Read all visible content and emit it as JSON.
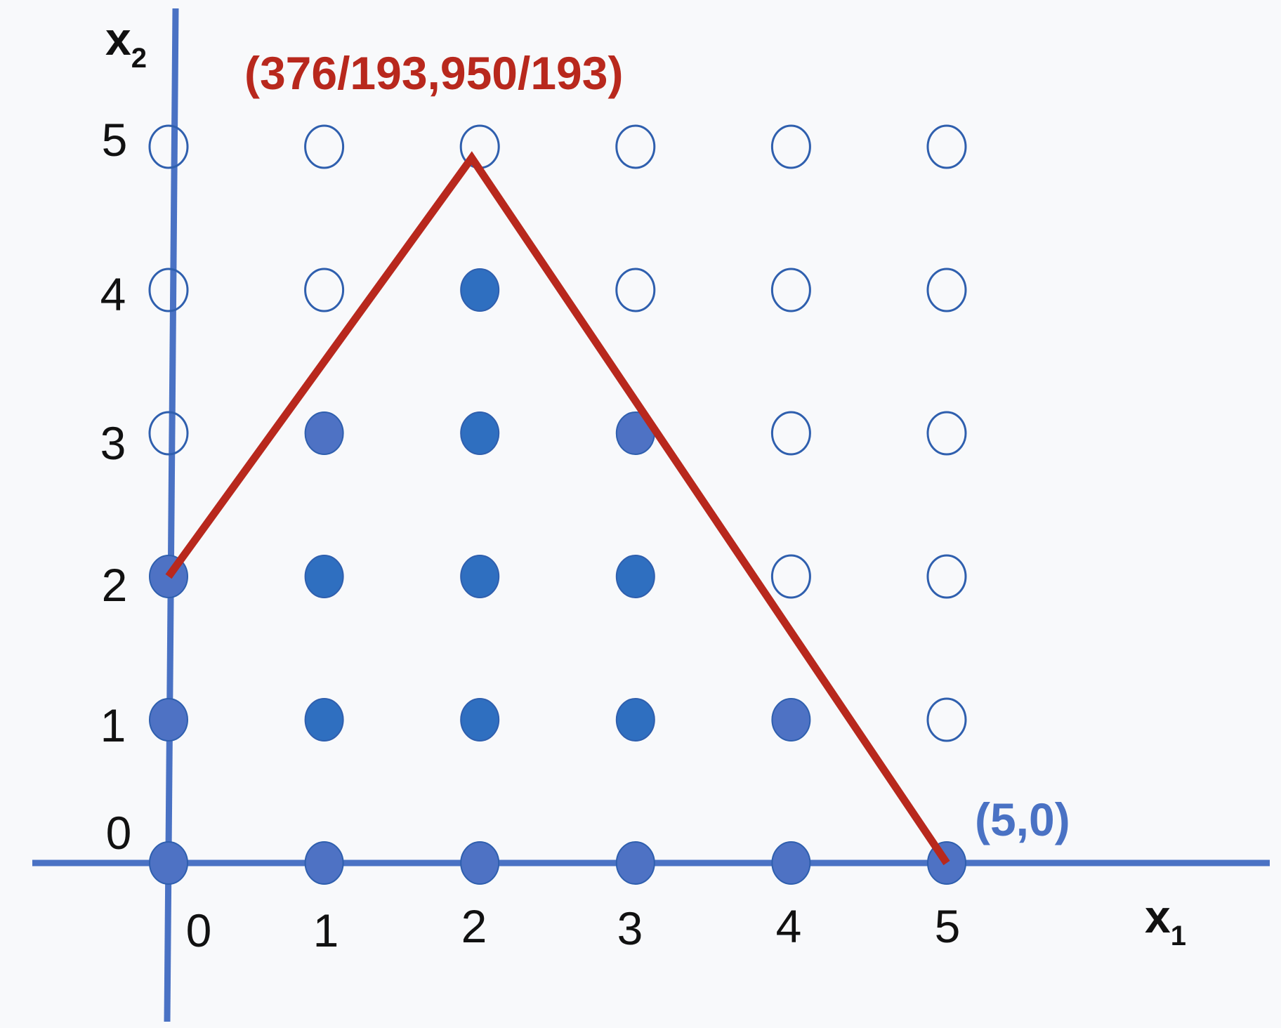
{
  "axes": {
    "x_label": "x",
    "x_subscript": "1",
    "y_label": "x",
    "y_subscript": "2",
    "x_ticks": [
      "0",
      "1",
      "2",
      "3",
      "4",
      "5"
    ],
    "y_ticks": [
      "0",
      "1",
      "2",
      "3",
      "4",
      "5"
    ]
  },
  "vertex_labels": {
    "apex": "(376/193,950/193)",
    "right": "(5,0)"
  },
  "colors": {
    "axis": "#4a72c4",
    "point_fill": "#2f6fc0",
    "point_fill_alt": "#4e72c4",
    "point_open_stroke": "#2f5fae",
    "constraint_line": "#b8281d",
    "apex_label": "#b8281d",
    "right_label": "#4a72c4",
    "tick_text": "#111111"
  },
  "diagram": {
    "constraint_polyline": [
      [
        0,
        2
      ],
      [
        1.948,
        4.922
      ],
      [
        5,
        0
      ]
    ],
    "points": [
      {
        "x": 0,
        "y": 0,
        "filled": true,
        "tone": "alt"
      },
      {
        "x": 1,
        "y": 0,
        "filled": true,
        "tone": "alt"
      },
      {
        "x": 2,
        "y": 0,
        "filled": true,
        "tone": "alt"
      },
      {
        "x": 3,
        "y": 0,
        "filled": true,
        "tone": "alt"
      },
      {
        "x": 4,
        "y": 0,
        "filled": true,
        "tone": "alt"
      },
      {
        "x": 5,
        "y": 0,
        "filled": true,
        "tone": "alt"
      },
      {
        "x": 0,
        "y": 1,
        "filled": true,
        "tone": "alt"
      },
      {
        "x": 1,
        "y": 1,
        "filled": true,
        "tone": "main"
      },
      {
        "x": 2,
        "y": 1,
        "filled": true,
        "tone": "main"
      },
      {
        "x": 3,
        "y": 1,
        "filled": true,
        "tone": "main"
      },
      {
        "x": 4,
        "y": 1,
        "filled": true,
        "tone": "alt"
      },
      {
        "x": 5,
        "y": 1,
        "filled": false
      },
      {
        "x": 0,
        "y": 2,
        "filled": true,
        "tone": "alt"
      },
      {
        "x": 1,
        "y": 2,
        "filled": true,
        "tone": "main"
      },
      {
        "x": 2,
        "y": 2,
        "filled": true,
        "tone": "main"
      },
      {
        "x": 3,
        "y": 2,
        "filled": true,
        "tone": "main"
      },
      {
        "x": 4,
        "y": 2,
        "filled": false
      },
      {
        "x": 5,
        "y": 2,
        "filled": false
      },
      {
        "x": 0,
        "y": 3,
        "filled": false
      },
      {
        "x": 1,
        "y": 3,
        "filled": true,
        "tone": "alt"
      },
      {
        "x": 2,
        "y": 3,
        "filled": true,
        "tone": "main"
      },
      {
        "x": 3,
        "y": 3,
        "filled": true,
        "tone": "alt"
      },
      {
        "x": 4,
        "y": 3,
        "filled": false
      },
      {
        "x": 5,
        "y": 3,
        "filled": false
      },
      {
        "x": 0,
        "y": 4,
        "filled": false
      },
      {
        "x": 1,
        "y": 4,
        "filled": false
      },
      {
        "x": 2,
        "y": 4,
        "filled": true,
        "tone": "main"
      },
      {
        "x": 3,
        "y": 4,
        "filled": false
      },
      {
        "x": 4,
        "y": 4,
        "filled": false
      },
      {
        "x": 5,
        "y": 4,
        "filled": false
      },
      {
        "x": 0,
        "y": 5,
        "filled": false
      },
      {
        "x": 1,
        "y": 5,
        "filled": false
      },
      {
        "x": 2,
        "y": 5,
        "filled": false
      },
      {
        "x": 3,
        "y": 5,
        "filled": false
      },
      {
        "x": 4,
        "y": 5,
        "filled": false
      },
      {
        "x": 5,
        "y": 5,
        "filled": false
      }
    ]
  }
}
